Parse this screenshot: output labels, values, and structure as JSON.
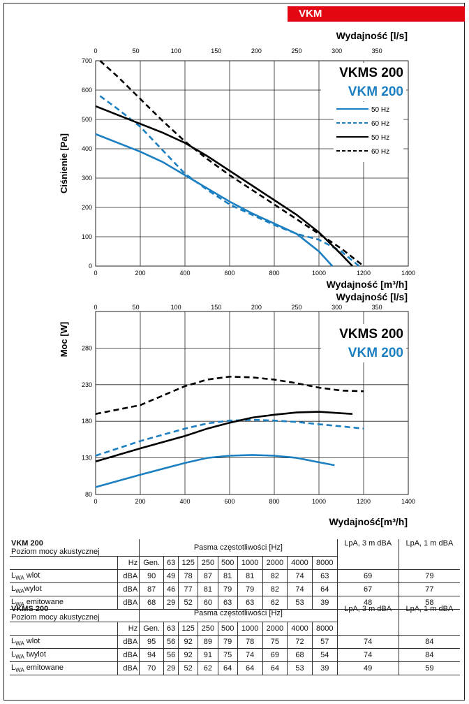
{
  "header": {
    "tag": "VKM"
  },
  "chart_data": [
    {
      "type": "line",
      "xlabel_top": "Wydajność [l/s]",
      "xlabel_bottom": "Wydajność [m³/h]",
      "ylabel": "Ciśnienie [Pa]",
      "xlim": [
        0,
        1400
      ],
      "ylim": [
        0,
        700
      ],
      "x_ticks": [
        0,
        200,
        400,
        600,
        800,
        1000,
        1200,
        1400
      ],
      "x_ticks_top": [
        0,
        50,
        100,
        150,
        200,
        250,
        300,
        350
      ],
      "y_ticks": [
        0,
        100,
        200,
        300,
        400,
        500,
        600,
        700
      ],
      "grid": true,
      "title_lines": [
        {
          "text": "VKMS 200",
          "color": "#000000"
        },
        {
          "text": "VKM 200",
          "color": "#1b7fc1"
        }
      ],
      "legend": [
        "50 Hz",
        "60 Hz",
        "50 Hz",
        "60 Hz"
      ],
      "series": [
        {
          "color": "#1b7fc1",
          "dash": false,
          "x": [
            0,
            200,
            300,
            400,
            500,
            600,
            700,
            800,
            900,
            1000,
            1060
          ],
          "y": [
            450,
            390,
            355,
            310,
            265,
            220,
            180,
            145,
            110,
            50,
            0
          ]
        },
        {
          "color": "#1b7fc1",
          "dash": true,
          "x": [
            20,
            100,
            200,
            300,
            400,
            500,
            600,
            700,
            800,
            900,
            1000,
            1100,
            1180
          ],
          "y": [
            580,
            535,
            475,
            395,
            315,
            260,
            210,
            175,
            140,
            110,
            90,
            50,
            0
          ]
        },
        {
          "color": "#000000",
          "dash": false,
          "x": [
            0,
            200,
            300,
            400,
            500,
            600,
            700,
            800,
            900,
            1000,
            1100,
            1150
          ],
          "y": [
            545,
            485,
            455,
            420,
            375,
            325,
            275,
            225,
            175,
            115,
            40,
            0
          ]
        },
        {
          "color": "#000000",
          "dash": true,
          "x": [
            20,
            100,
            200,
            300,
            400,
            500,
            600,
            700,
            800,
            900,
            1000,
            1100,
            1200
          ],
          "y": [
            700,
            645,
            570,
            495,
            425,
            365,
            310,
            260,
            210,
            160,
            110,
            60,
            0
          ]
        }
      ]
    },
    {
      "type": "line",
      "xlabel_top": "Wydajność [l/s]",
      "xlabel_bottom": "Wydajność[m³/h]",
      "ylabel": "Moc [W]",
      "xlim": [
        0,
        1400
      ],
      "ylim": [
        80,
        330
      ],
      "x_ticks": [
        0,
        200,
        400,
        600,
        800,
        1000,
        1200,
        1400
      ],
      "x_ticks_top": [
        0,
        50,
        100,
        150,
        200,
        250,
        300,
        350
      ],
      "y_ticks": [
        80,
        130,
        180,
        230,
        280
      ],
      "grid": true,
      "title_lines": [
        {
          "text": "VKMS 200",
          "color": "#000000"
        },
        {
          "text": "VKM 200",
          "color": "#1b7fc1"
        }
      ],
      "series": [
        {
          "color": "#1b7fc1",
          "dash": false,
          "x": [
            0,
            200,
            400,
            500,
            600,
            700,
            800,
            900,
            1000,
            1070
          ],
          "y": [
            90,
            107,
            123,
            130,
            133,
            134,
            133,
            130,
            124,
            120
          ]
        },
        {
          "color": "#1b7fc1",
          "dash": true,
          "x": [
            0,
            200,
            400,
            500,
            600,
            700,
            800,
            900,
            1000,
            1100,
            1200
          ],
          "y": [
            133,
            153,
            170,
            177,
            181,
            182,
            181,
            179,
            176,
            173,
            170
          ]
        },
        {
          "color": "#000000",
          "dash": false,
          "x": [
            0,
            200,
            400,
            500,
            600,
            700,
            800,
            900,
            1000,
            1100,
            1150
          ],
          "y": [
            125,
            143,
            160,
            170,
            178,
            185,
            189,
            192,
            193,
            191,
            190
          ]
        },
        {
          "color": "#000000",
          "dash": true,
          "x": [
            0,
            200,
            300,
            400,
            500,
            600,
            700,
            800,
            900,
            1000,
            1100,
            1200
          ],
          "y": [
            190,
            202,
            215,
            228,
            237,
            241,
            240,
            237,
            232,
            226,
            222,
            221
          ]
        }
      ]
    }
  ],
  "tables": [
    {
      "title": "VKM 200",
      "subtitle": "Poziom mocy akustycznej",
      "bands_label": "Pasma częstotliwości [Hz]",
      "hz_label": "Hz",
      "bands": [
        "Gen.",
        "63",
        "125",
        "250",
        "500",
        "1000",
        "2000",
        "4000",
        "8000"
      ],
      "lpa3": "LpA, 3 m dBA",
      "lpa1": "LpA, 1 m dBA",
      "rows": [
        {
          "label": "L",
          "sub": "WA",
          "suffix": " wlot",
          "unit": "dBA",
          "vals": [
            "90",
            "49",
            "78",
            "87",
            "81",
            "81",
            "82",
            "74",
            "63"
          ],
          "l3": "69",
          "l1": "79"
        },
        {
          "label": "L",
          "sub": "WA",
          "suffix": "wylot",
          "unit": "dBA",
          "vals": [
            "87",
            "46",
            "77",
            "81",
            "79",
            "79",
            "82",
            "74",
            "64"
          ],
          "l3": "67",
          "l1": "77"
        },
        {
          "label": "L",
          "sub": "WA",
          "suffix": " emitowane",
          "unit": "dBA",
          "vals": [
            "68",
            "29",
            "52",
            "60",
            "63",
            "63",
            "62",
            "53",
            "39"
          ],
          "l3": "48",
          "l1": "58"
        }
      ]
    },
    {
      "title": "VKMS 200",
      "subtitle": "Poziom mocy akustycznej",
      "bands_label": "Pasma częstotliwości [Hz]",
      "hz_label": "Hz",
      "bands": [
        "Gen.",
        "63",
        "125",
        "250",
        "500",
        "1000",
        "2000",
        "4000",
        "8000"
      ],
      "lpa3": "LpA, 3 m dBA",
      "lpa1": "LpA, 1 m dBA",
      "rows": [
        {
          "label": "L",
          "sub": "WA",
          "suffix": " wlot",
          "unit": "dBA",
          "vals": [
            "95",
            "56",
            "92",
            "89",
            "79",
            "78",
            "75",
            "72",
            "57"
          ],
          "l3": "74",
          "l1": "84"
        },
        {
          "label": "L",
          "sub": "WA",
          "suffix": " twylot",
          "unit": "dBA",
          "vals": [
            "94",
            "56",
            "92",
            "91",
            "75",
            "74",
            "69",
            "68",
            "54"
          ],
          "l3": "74",
          "l1": "84"
        },
        {
          "label": "L",
          "sub": "WA",
          "suffix": " emitowane",
          "unit": "dBA",
          "vals": [
            "70",
            "29",
            "52",
            "62",
            "64",
            "64",
            "64",
            "53",
            "39"
          ],
          "l3": "49",
          "l1": "59"
        }
      ]
    }
  ]
}
